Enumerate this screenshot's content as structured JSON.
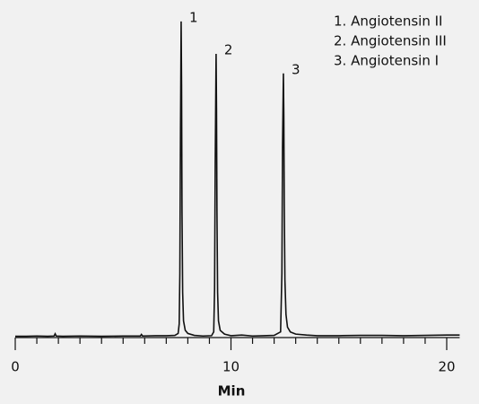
{
  "chart_data": {
    "type": "line",
    "x_label": "Min",
    "legend_items": [
      "1. Angiotensin II",
      "2. Angiotensin III",
      "3. Angiotensin I"
    ],
    "peak_labels": [
      "1",
      "2",
      "3"
    ],
    "color": "#111111",
    "x": [
      0,
      0.5,
      1,
      1.5,
      1.8,
      1.85,
      1.9,
      2.2,
      3,
      4,
      5,
      5.8,
      5.85,
      5.9,
      6.5,
      7,
      7.4,
      7.55,
      7.6,
      7.63,
      7.66,
      7.69,
      7.71,
      7.73,
      7.76,
      7.8,
      7.88,
      8,
      8.3,
      8.7,
      9.1,
      9.2,
      9.24,
      9.27,
      9.31,
      9.33,
      9.35,
      9.38,
      9.42,
      9.5,
      9.7,
      10,
      10.5,
      11,
      11.5,
      12,
      12.3,
      12.36,
      12.39,
      12.43,
      12.45,
      12.47,
      12.5,
      12.55,
      12.62,
      12.75,
      13,
      13.5,
      14,
      15,
      16,
      17,
      18,
      19,
      20,
      20.6
    ],
    "values": [
      0.1,
      0.1,
      0.2,
      0.1,
      0.2,
      0.9,
      0.2,
      0.1,
      0.2,
      0.1,
      0.2,
      0.2,
      0.7,
      0.2,
      0.3,
      0.3,
      0.4,
      1,
      4,
      20,
      65,
      100,
      80,
      40,
      14,
      5,
      2,
      1,
      0.4,
      0.2,
      0.3,
      1.5,
      15,
      55,
      89.7,
      72,
      40,
      14,
      5,
      2,
      0.8,
      0.3,
      0.5,
      0.2,
      0.3,
      0.4,
      1.5,
      20,
      60,
      83.5,
      70,
      42,
      18,
      7,
      3,
      1.5,
      0.8,
      0.5,
      0.3,
      0.3,
      0.4,
      0.4,
      0.3,
      0.4,
      0.5,
      0.5
    ],
    "xlim": [
      0,
      20.6
    ],
    "ylim": [
      -0.3,
      102.8
    ],
    "xticks": [
      0,
      10,
      20
    ],
    "xminorticks": [
      1,
      2,
      3,
      4,
      5,
      6,
      7,
      8,
      9,
      11,
      12,
      13,
      14,
      15,
      16,
      17,
      18,
      19
    ]
  }
}
